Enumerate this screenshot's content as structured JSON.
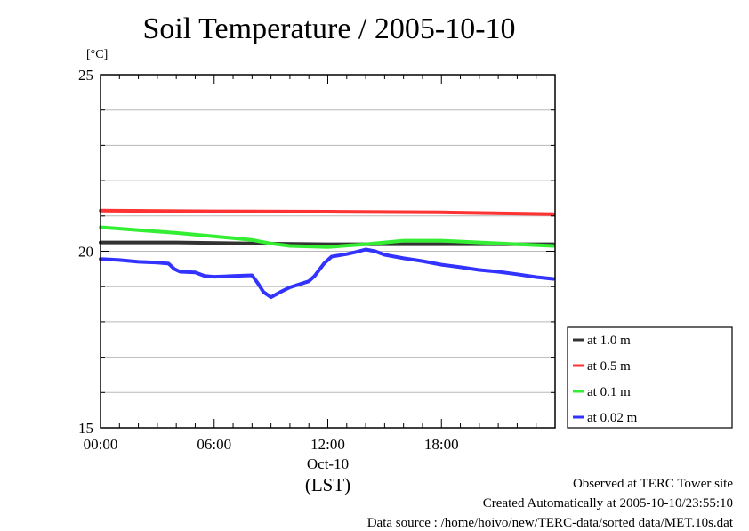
{
  "chart_data": {
    "type": "line",
    "title": "Soil Temperature / 2005-10-10",
    "ylabel": "[°C]",
    "xlabel": "(LST)",
    "x_date_label": "Oct-10",
    "ylim": [
      15,
      25
    ],
    "yticks": [
      "15",
      "20",
      "25"
    ],
    "xlim": [
      0,
      24
    ],
    "xticks": [
      {
        "value": 0,
        "label": "00:00"
      },
      {
        "value": 6,
        "label": "06:00"
      },
      {
        "value": 12,
        "label": "12:00"
      },
      {
        "value": 18,
        "label": "18:00"
      }
    ],
    "grid": true,
    "legend_position": "right",
    "series": [
      {
        "name": "at 1.0 m",
        "color": "#333333",
        "x": [
          0,
          4,
          8,
          12,
          16,
          20,
          23.9
        ],
        "y": [
          20.25,
          20.25,
          20.22,
          20.2,
          20.2,
          20.2,
          20.2
        ]
      },
      {
        "name": "at 0.5 m",
        "color": "#ff3333",
        "x": [
          0,
          6,
          12,
          18,
          23.9
        ],
        "y": [
          21.15,
          21.13,
          21.12,
          21.1,
          21.05
        ]
      },
      {
        "name": "at 0.1 m",
        "color": "#33ee33",
        "x": [
          0,
          2,
          4,
          6,
          8,
          9,
          10,
          12,
          14,
          16,
          18,
          20,
          22,
          23.9
        ],
        "y": [
          20.68,
          20.6,
          20.52,
          20.42,
          20.32,
          20.22,
          20.15,
          20.12,
          20.2,
          20.3,
          20.3,
          20.25,
          20.2,
          20.15
        ]
      },
      {
        "name": "at 0.02 m",
        "color": "#3333ff",
        "x": [
          0,
          1,
          2,
          3,
          3.6,
          3.9,
          4.2,
          5,
          5.5,
          6,
          7,
          8,
          8.3,
          8.6,
          9,
          9.5,
          10,
          11,
          11.3,
          11.8,
          12.2,
          13,
          13.5,
          14,
          14.5,
          15,
          16,
          17,
          18,
          19,
          20,
          21,
          22,
          23,
          23.9
        ],
        "y": [
          19.78,
          19.75,
          19.7,
          19.68,
          19.65,
          19.5,
          19.42,
          19.4,
          19.3,
          19.28,
          19.3,
          19.32,
          19.1,
          18.85,
          18.7,
          18.85,
          18.98,
          19.15,
          19.3,
          19.65,
          19.85,
          19.92,
          19.98,
          20.05,
          20.0,
          19.9,
          19.8,
          19.72,
          19.62,
          19.55,
          19.47,
          19.42,
          19.35,
          19.27,
          19.22
        ]
      }
    ]
  },
  "footer": {
    "observed": "Observed at TERC Tower site",
    "created": "Created Automatically at 2005-10-10/23:55:10",
    "source": "Data source : /home/hoivo/new/TERC-data/sorted  data/MET.10s.dat"
  }
}
